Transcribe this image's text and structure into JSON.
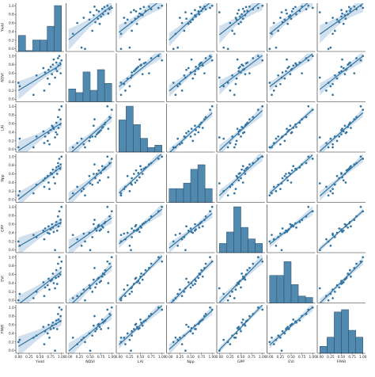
{
  "chart_data": {
    "type": "pairplot",
    "variables": [
      "Yield",
      "NDVI",
      "LAI",
      "Npp",
      "GPP",
      "EVI",
      "FPAR"
    ],
    "axis_ticks": [
      "0.00",
      "0.25",
      "0.50",
      "0.75",
      "1.00"
    ],
    "axis_tick_values": [
      0,
      0.25,
      0.5,
      0.75,
      1.0
    ],
    "y_ticks": [
      "0.0",
      "0.2",
      "0.4",
      "0.6",
      "0.8",
      "1.0"
    ],
    "y_tick_values": [
      0,
      0.2,
      0.4,
      0.6,
      0.8,
      1.0
    ],
    "range": [
      -0.06,
      1.06
    ],
    "color": "#3274a1",
    "band_color": "#c5d8ea",
    "hist_edge_color": "#2b4f6e",
    "histograms": {
      "Yield": [
        0.35,
        0.02,
        0.25,
        0.25,
        0.55,
        1.0
      ],
      "NDVI": [
        0.28,
        0.2,
        0.65,
        0.25,
        0.7,
        0.4
      ],
      "LAI": [
        0.7,
        1.0,
        0.6,
        0.3,
        0.1,
        0.15
      ],
      "Npp": [
        0.3,
        0.3,
        0.42,
        0.72,
        0.82,
        0.3
      ],
      "GPP": [
        0.2,
        0.45,
        1.0,
        0.55,
        0.3,
        0.2
      ],
      "EVI": [
        0.6,
        0.6,
        0.9,
        0.4,
        0.15,
        0.12
      ],
      "FPAR": [
        0.15,
        0.35,
        0.9,
        0.95,
        0.5,
        0.35
      ]
    },
    "values": {
      "Yield": [
        0.0,
        0.03,
        0.35,
        0.42,
        0.58,
        0.6,
        0.62,
        0.68,
        0.7,
        0.72,
        0.75,
        0.78,
        0.8,
        0.82,
        0.85,
        0.87,
        0.88,
        0.9,
        0.92,
        0.93,
        0.95,
        0.97,
        0.98,
        1.0
      ],
      "NDVI": [
        0.38,
        0.3,
        0.1,
        0.55,
        0.72,
        0.2,
        0.62,
        0.48,
        0.68,
        0.35,
        0.75,
        0.58,
        0.8,
        0.92,
        0.5,
        0.7,
        0.85,
        0.65,
        0.95,
        0.78,
        1.0,
        0.83,
        0.6,
        0.9
      ],
      "LAI": [
        0.05,
        0.25,
        0.05,
        0.3,
        0.42,
        0.15,
        0.3,
        0.2,
        0.38,
        0.12,
        0.45,
        0.55,
        0.52,
        0.48,
        0.28,
        0.4,
        0.62,
        0.35,
        0.75,
        0.5,
        0.92,
        0.58,
        0.7,
        1.0
      ],
      "Npp": [
        0.1,
        0.2,
        0.15,
        0.35,
        0.45,
        0.3,
        0.5,
        0.55,
        0.4,
        0.25,
        0.62,
        0.6,
        0.7,
        0.52,
        0.38,
        0.68,
        0.75,
        0.6,
        0.85,
        0.78,
        0.95,
        0.72,
        0.82,
        1.0
      ],
      "GPP": [
        0.2,
        0.1,
        0.35,
        0.3,
        0.45,
        0.25,
        0.5,
        0.4,
        0.55,
        0.38,
        0.48,
        0.6,
        0.52,
        0.42,
        0.0,
        0.58,
        0.65,
        0.45,
        0.78,
        0.55,
        0.9,
        0.62,
        0.7,
        1.0
      ],
      "EVI": [
        0.0,
        0.15,
        0.05,
        0.2,
        0.42,
        0.1,
        0.3,
        0.35,
        0.5,
        0.25,
        0.45,
        0.48,
        0.62,
        0.4,
        0.28,
        0.52,
        0.7,
        0.38,
        0.85,
        0.55,
        1.0,
        0.6,
        0.75,
        0.9
      ],
      "FPAR": [
        0.2,
        0.25,
        0.3,
        0.35,
        0.55,
        0.15,
        0.45,
        0.4,
        0.6,
        0.3,
        0.5,
        0.58,
        0.65,
        0.52,
        0.0,
        0.62,
        0.7,
        0.5,
        0.85,
        0.72,
        1.0,
        0.68,
        0.8,
        0.95
      ]
    }
  }
}
